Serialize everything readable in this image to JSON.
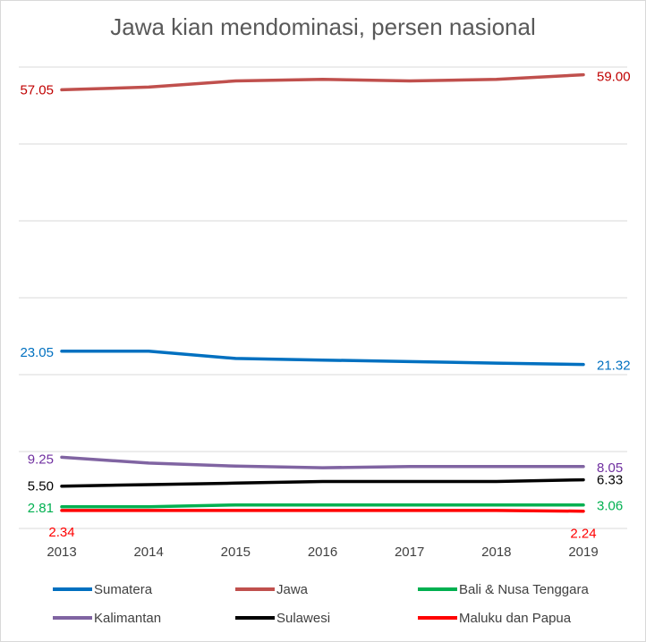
{
  "title": "Jawa kian mendominasi, persen nasional",
  "chart_data": {
    "type": "line",
    "title": "Jawa kian mendominasi, persen nasional",
    "categories": [
      "2013",
      "2014",
      "2015",
      "2016",
      "2017",
      "2018",
      "2019"
    ],
    "ylim": [
      0,
      60
    ],
    "grid": true,
    "legend_position": "bottom",
    "series": [
      {
        "name": "Sumatera",
        "color": "#0070c0",
        "values": [
          23.05,
          23.05,
          22.1,
          21.9,
          21.7,
          21.5,
          21.32
        ],
        "start_label": "23.05",
        "end_label": "21.32",
        "label_color": "#0070c0"
      },
      {
        "name": "Jawa",
        "color": "#c0504d",
        "values": [
          57.05,
          57.4,
          58.2,
          58.4,
          58.2,
          58.4,
          59.0
        ],
        "start_label": "57.05",
        "end_label": "59.00",
        "label_color": "#c00000"
      },
      {
        "name": "Bali & Nusa Tenggara",
        "color": "#00b050",
        "values": [
          2.81,
          2.81,
          3.06,
          3.06,
          3.06,
          3.06,
          3.06
        ],
        "start_label": "2.81",
        "end_label": "3.06",
        "label_color": "#00b050"
      },
      {
        "name": "Kalimantan",
        "color": "#8064a2",
        "values": [
          9.25,
          8.5,
          8.1,
          7.9,
          8.05,
          8.05,
          8.05
        ],
        "start_label": "9.25",
        "end_label": "8.05",
        "label_color": "#7030a0"
      },
      {
        "name": "Sulawesi",
        "color": "#000000",
        "values": [
          5.5,
          5.7,
          5.9,
          6.1,
          6.1,
          6.1,
          6.33
        ],
        "start_label": "5.50",
        "end_label": "6.33",
        "label_color": "#000000"
      },
      {
        "name": "Maluku dan Papua",
        "color": "#ff0000",
        "values": [
          2.34,
          2.34,
          2.34,
          2.34,
          2.34,
          2.34,
          2.24
        ],
        "start_label": "2.34",
        "end_label": "2.24",
        "label_color": "#ff0000"
      }
    ]
  }
}
